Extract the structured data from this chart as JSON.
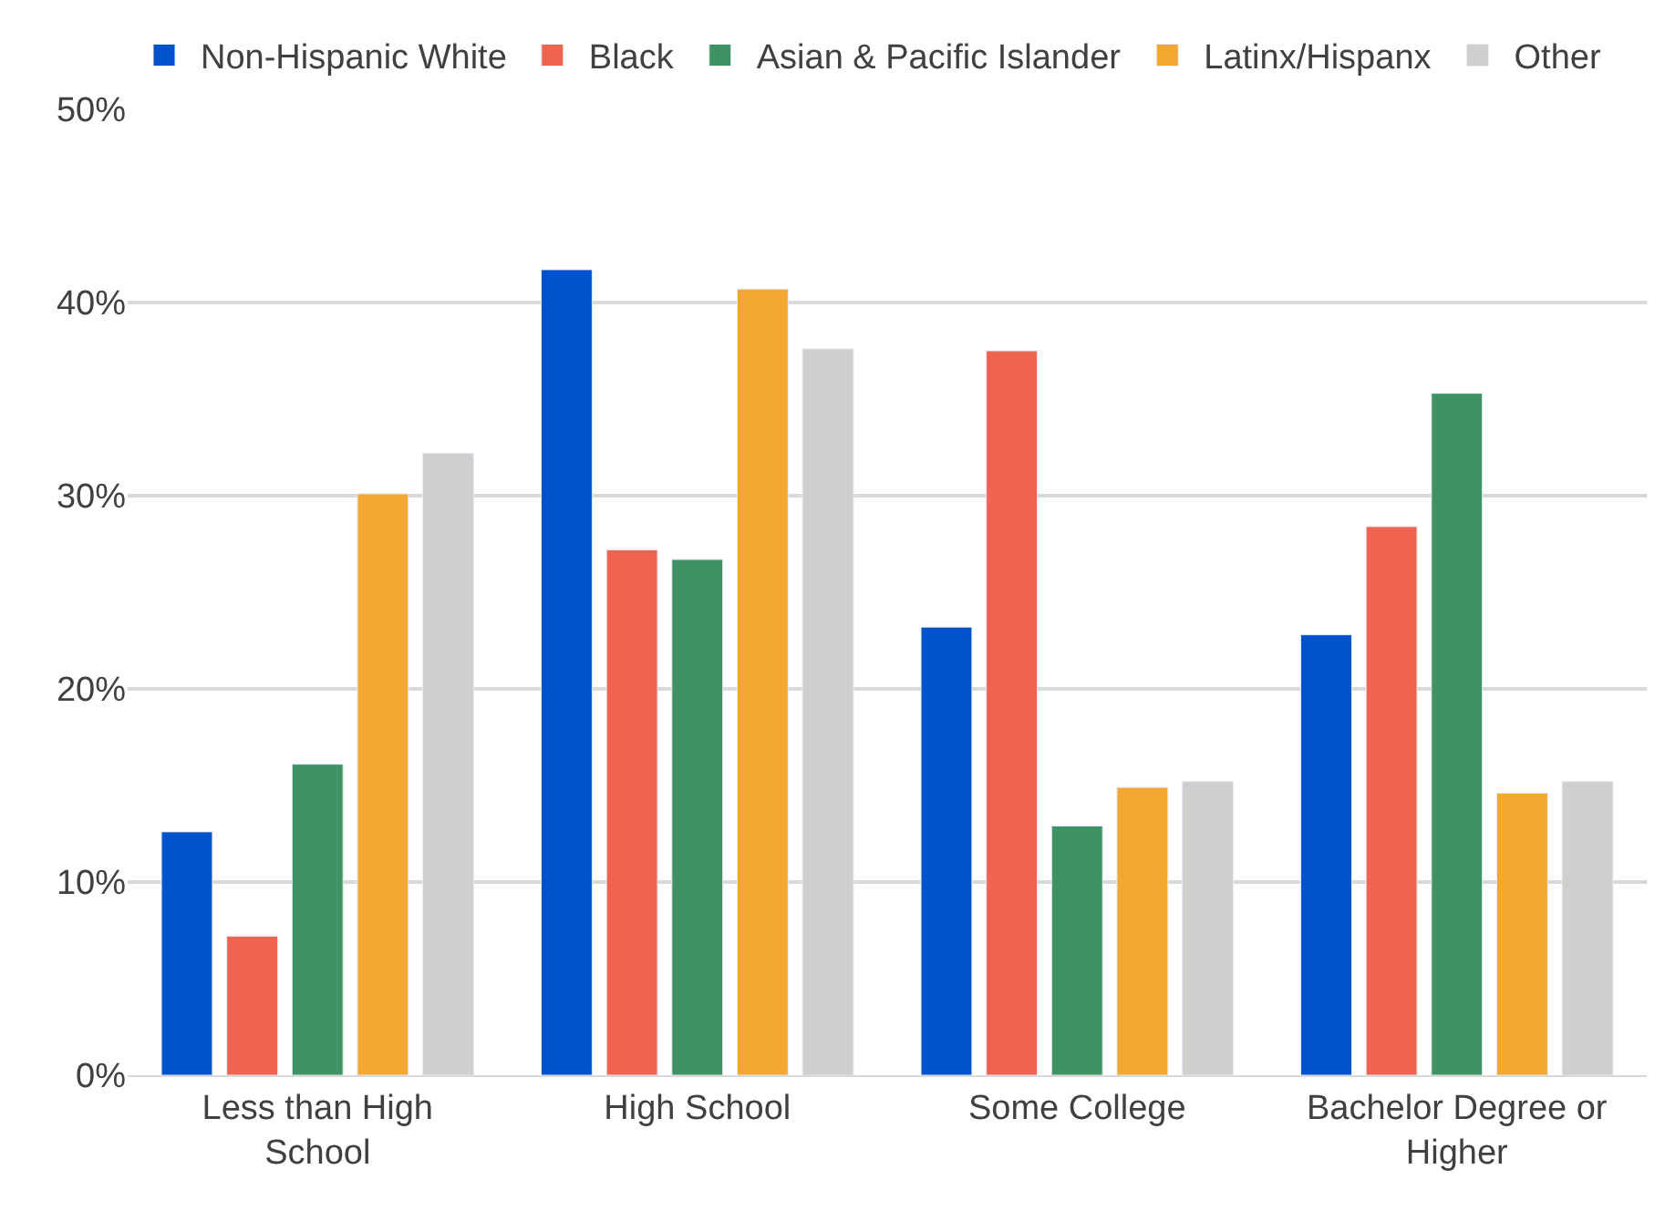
{
  "chart_data": {
    "type": "bar",
    "categories": [
      "Less than High School",
      "High School",
      "Some College",
      "Bachelor Degree or Higher"
    ],
    "series": [
      {
        "name": "Non-Hispanic White",
        "color": "#0052cc",
        "values": [
          12.6,
          41.7,
          23.2,
          22.8
        ]
      },
      {
        "name": "Black",
        "color": "#ef6351",
        "values": [
          7.2,
          27.2,
          37.5,
          28.4
        ]
      },
      {
        "name": "Asian & Pacific Islander",
        "color": "#3f9264",
        "values": [
          16.1,
          26.7,
          12.9,
          35.3
        ]
      },
      {
        "name": "Latinx/Hispanx",
        "color": "#f5a733",
        "values": [
          30.1,
          40.7,
          14.9,
          14.6
        ]
      },
      {
        "name": "Other",
        "color": "#d0cfd0",
        "values": [
          32.2,
          37.6,
          15.2,
          15.2
        ]
      }
    ],
    "ylim": [
      0,
      50
    ],
    "yticks": [
      {
        "value": 0,
        "label": "0%"
      },
      {
        "value": 10,
        "label": "10%"
      },
      {
        "value": 20,
        "label": "20%"
      },
      {
        "value": 30,
        "label": "30%"
      },
      {
        "value": 40,
        "label": "40%"
      },
      {
        "value": 50,
        "label": "50%"
      }
    ],
    "grid": "y",
    "legend": "top"
  }
}
